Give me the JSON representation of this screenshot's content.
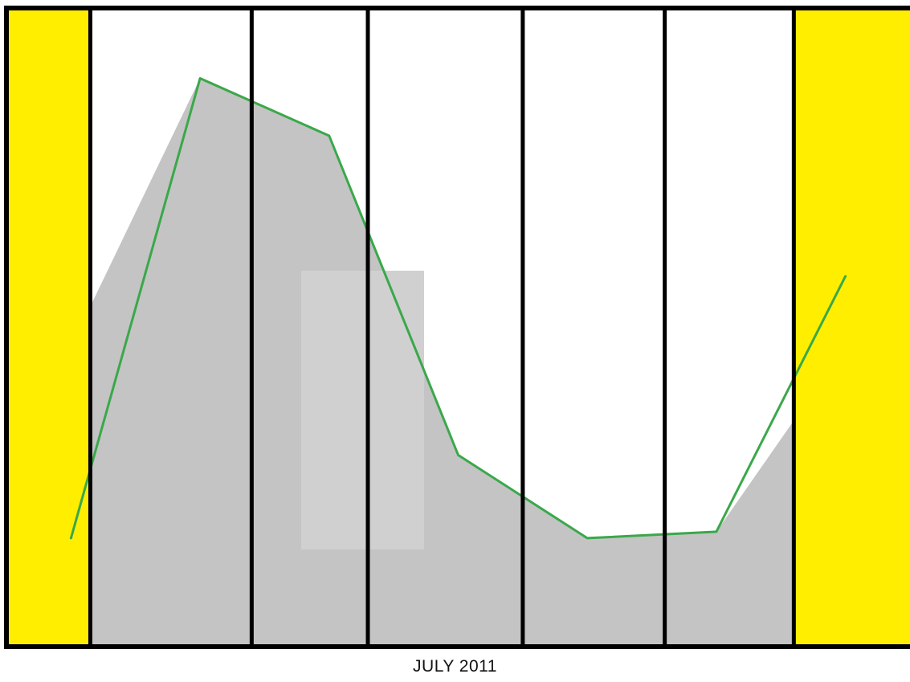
{
  "chart_data": {
    "type": "area",
    "title": "",
    "xlabel": "JULY 2011",
    "ylabel": "",
    "grid": false,
    "legend": "none",
    "x": [
      1,
      2,
      3,
      4,
      5,
      6,
      7
    ],
    "ylim": [
      0,
      100
    ],
    "xlim": [
      0.5,
      7.5
    ],
    "series": [
      {
        "role": "line",
        "values": [
          17,
          89,
          80,
          30,
          17,
          18,
          58
        ]
      },
      {
        "role": "area",
        "values": [
          47,
          89,
          80,
          30,
          17,
          18,
          47
        ]
      }
    ],
    "highlight_bands": [
      [
        0.5,
        1.15
      ],
      [
        6.6,
        7.5
      ]
    ],
    "dividers": [
      1.15,
      2.4,
      3.3,
      4.5,
      5.6,
      6.6
    ],
    "colors": {
      "line": "#3aa84a",
      "area": "#c4c4c4",
      "inner_box": "#d0d0d0",
      "band": "#ffee00",
      "divider": "#000000",
      "frame": "#000000"
    }
  }
}
